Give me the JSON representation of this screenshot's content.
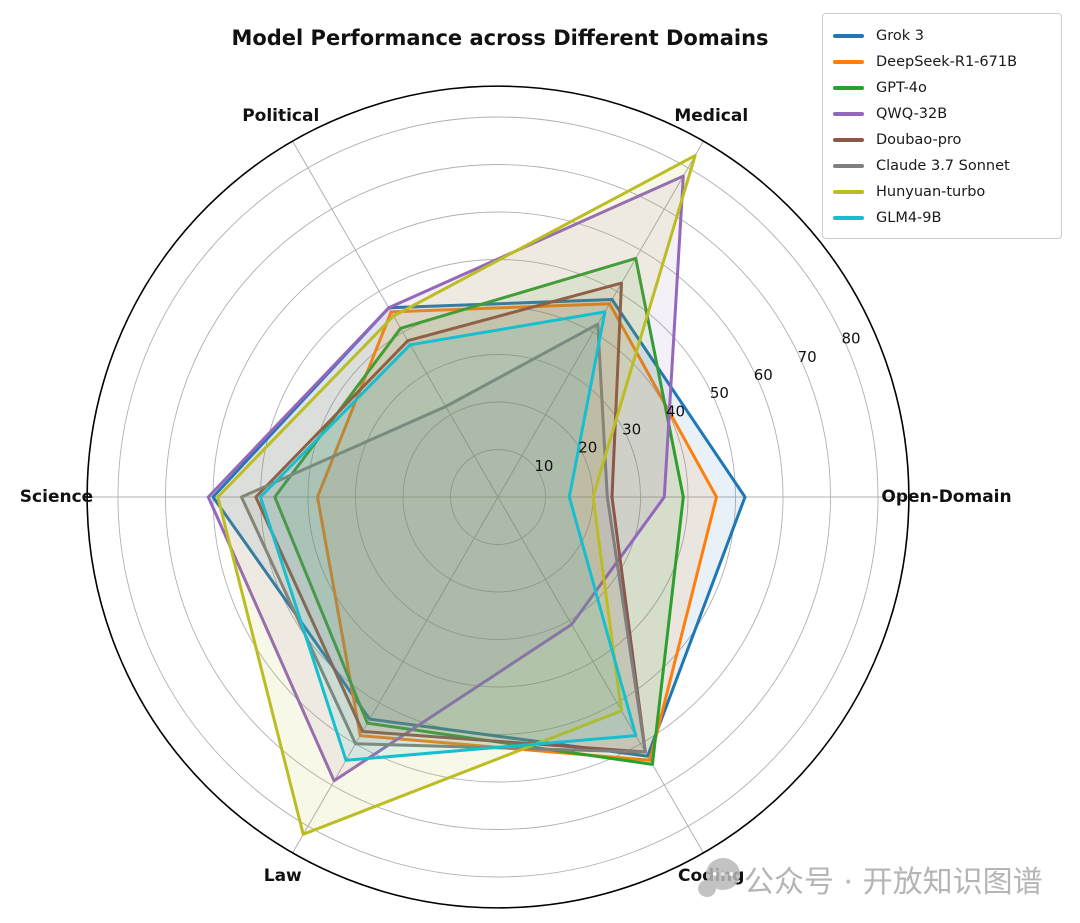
{
  "chart_data": {
    "type": "radar",
    "title": "Model Performance across Different Domains",
    "grid": true,
    "legend_position": "top-right",
    "r_max": 86.5,
    "fill_alpha": 0.1,
    "radial_ticks": [
      {
        "label": "10",
        "value": 10
      },
      {
        "label": "20",
        "value": 20
      },
      {
        "label": "30",
        "value": 30
      },
      {
        "label": "40",
        "value": 40
      },
      {
        "label": "50",
        "value": 50
      },
      {
        "label": "60",
        "value": 60
      },
      {
        "label": "70",
        "value": 70
      },
      {
        "label": "80",
        "value": 80
      }
    ],
    "categories": [
      {
        "label": "Medical",
        "angle_deg": 60
      },
      {
        "label": "Open-Domain",
        "angle_deg": 0
      },
      {
        "label": "Coding",
        "angle_deg": 300
      },
      {
        "label": "Law",
        "angle_deg": 240
      },
      {
        "label": "Science",
        "angle_deg": 180
      },
      {
        "label": "Political",
        "angle_deg": 120
      }
    ],
    "series": [
      {
        "name": "Grok 3",
        "color": "#1f77b4",
        "values": [
          48,
          52,
          63,
          54,
          60,
          46
        ]
      },
      {
        "name": "DeepSeek-R1-671B",
        "color": "#ff7f0e",
        "values": [
          47,
          46,
          64,
          58,
          38,
          45
        ]
      },
      {
        "name": "GPT-4o",
        "color": "#2ca02c",
        "values": [
          58,
          39,
          65,
          55,
          47,
          41
        ]
      },
      {
        "name": "QWQ-32B",
        "color": "#9467bd",
        "values": [
          78,
          35,
          31,
          69,
          61,
          46
        ]
      },
      {
        "name": "Doubao-pro",
        "color": "#8c564b",
        "values": [
          52,
          24,
          62,
          57,
          51,
          38
        ]
      },
      {
        "name": "Claude 3.7 Sonnet",
        "color": "#7f7f7f",
        "values": [
          42,
          23,
          62,
          60,
          54,
          22
        ]
      },
      {
        "name": "Hunyuan-turbo",
        "color": "#bcbd22",
        "values": [
          83,
          20,
          52,
          82,
          59,
          44
        ]
      },
      {
        "name": "GLM4-9B",
        "color": "#17becf",
        "values": [
          45,
          15,
          58,
          64,
          50,
          37
        ]
      }
    ]
  },
  "watermark": {
    "text": "公众号 · 开放知识图谱"
  }
}
